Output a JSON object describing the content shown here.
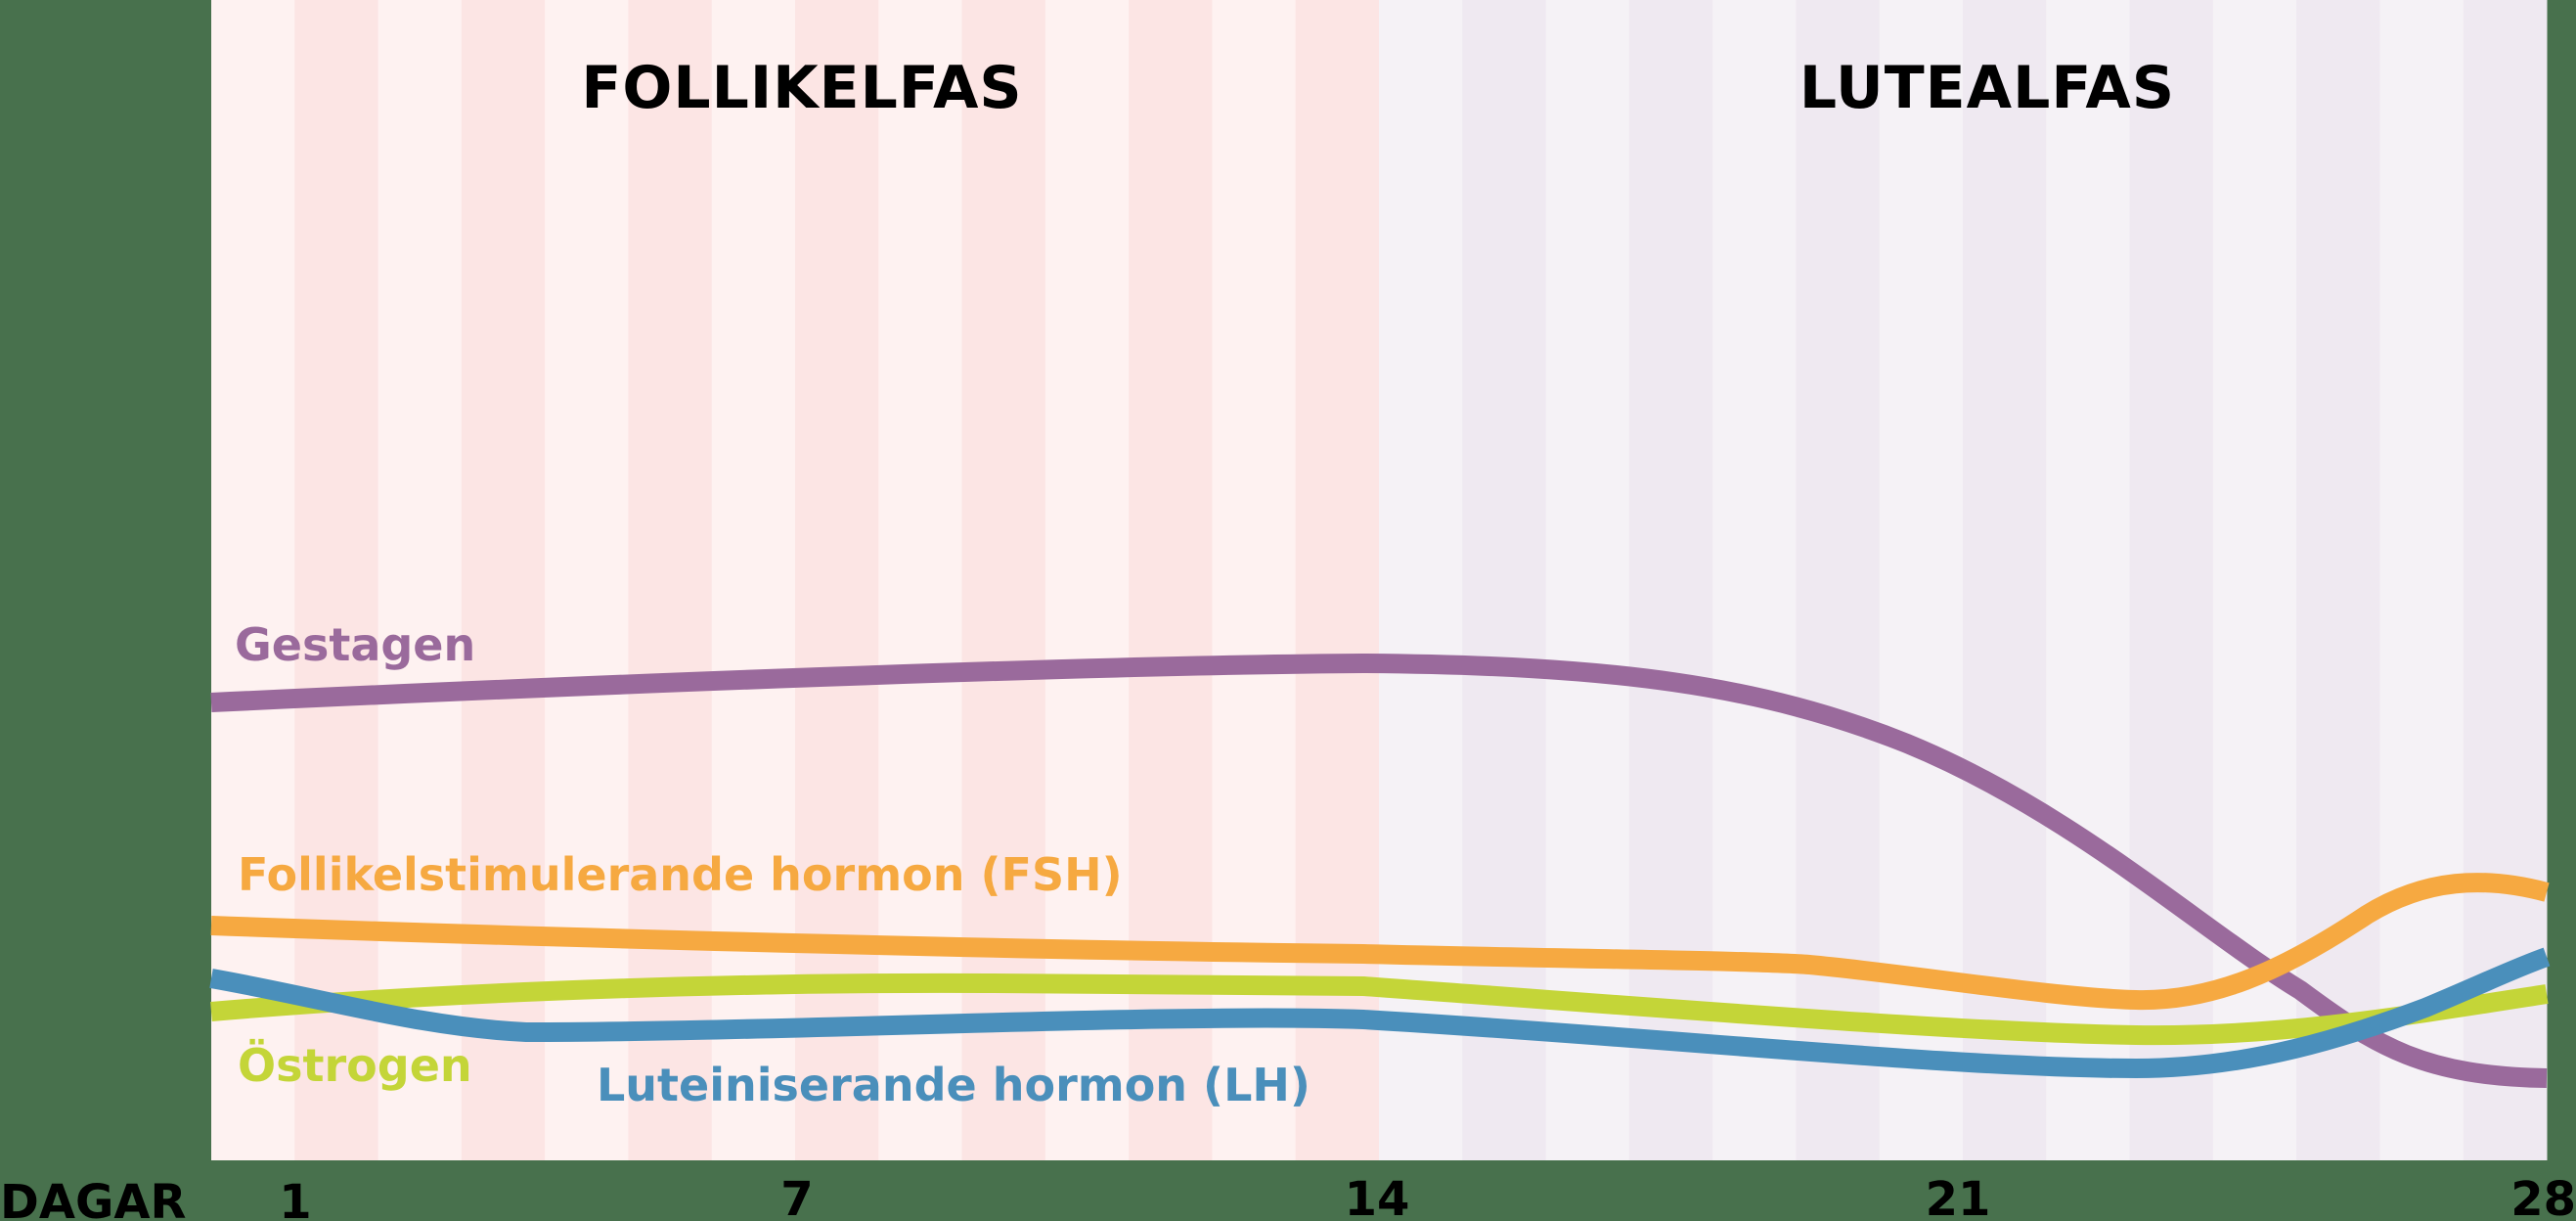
{
  "chart_data": {
    "type": "line",
    "title": "",
    "xlabel": "DAGAR",
    "ylabel": "",
    "x_ticks": [
      1,
      7,
      14,
      21,
      28
    ],
    "xlim": [
      0,
      28
    ],
    "ylim": [
      0,
      100
    ],
    "grid": false,
    "legend_position": "inline labels",
    "phases": [
      {
        "name": "FOLLIKELFAS",
        "start_day": 0,
        "end_day": 14
      },
      {
        "name": "LUTEALFAS",
        "start_day": 14,
        "end_day": 28
      }
    ],
    "x": [
      0,
      2,
      4,
      7,
      10,
      14,
      17,
      19,
      21,
      23,
      24,
      25,
      26,
      27,
      28
    ],
    "series": [
      {
        "name": "Gestagen",
        "color": "#9a6a9c",
        "values": [
          40,
          41,
          41.5,
          42,
          42.5,
          43,
          42,
          39,
          32,
          20,
          14,
          8,
          6,
          5,
          5
        ]
      },
      {
        "name": "Follikelstimulerande hormon (FSH)",
        "color": "#f6a941",
        "values": [
          20,
          19.5,
          19,
          18.5,
          18,
          17.5,
          17,
          16.5,
          14.5,
          13,
          15,
          19,
          23,
          24,
          23
        ]
      },
      {
        "name": "Östrogen",
        "color": "#c4d538",
        "values": [
          13,
          14,
          14.5,
          15,
          15,
          15,
          14,
          13,
          11.5,
          11,
          11.5,
          12,
          13,
          14,
          15
        ]
      },
      {
        "name": "Luteiniserande hormon (LH)",
        "color": "#4a8fbb",
        "values": [
          16,
          13,
          11,
          11.5,
          12,
          12.5,
          11,
          10,
          9,
          8.5,
          10,
          12,
          14.5,
          17,
          19
        ]
      }
    ]
  },
  "header": {
    "phase_left": "FOLLIKELFAS",
    "phase_right": "LUTEALFAS"
  },
  "labels": {
    "gestagen": "Gestagen",
    "fsh": "Follikelstimulerande hormon (FSH)",
    "ostrogen": "Östrogen",
    "lh": "Luteiniserande hormon (LH)"
  },
  "axis": {
    "title": "DAGAR",
    "ticks": [
      "1",
      "7",
      "14",
      "21",
      "28"
    ]
  },
  "colors": {
    "background": "#48714d",
    "follicular_light": "#fef2f1",
    "follicular_dark": "#fce5e4",
    "luteal_light": "#f5f2f6",
    "luteal_dark": "#efe9f1",
    "gestagen": "#9a6a9c",
    "fsh": "#f6a941",
    "ostrogen": "#c4d538",
    "lh": "#4a8fbb"
  }
}
